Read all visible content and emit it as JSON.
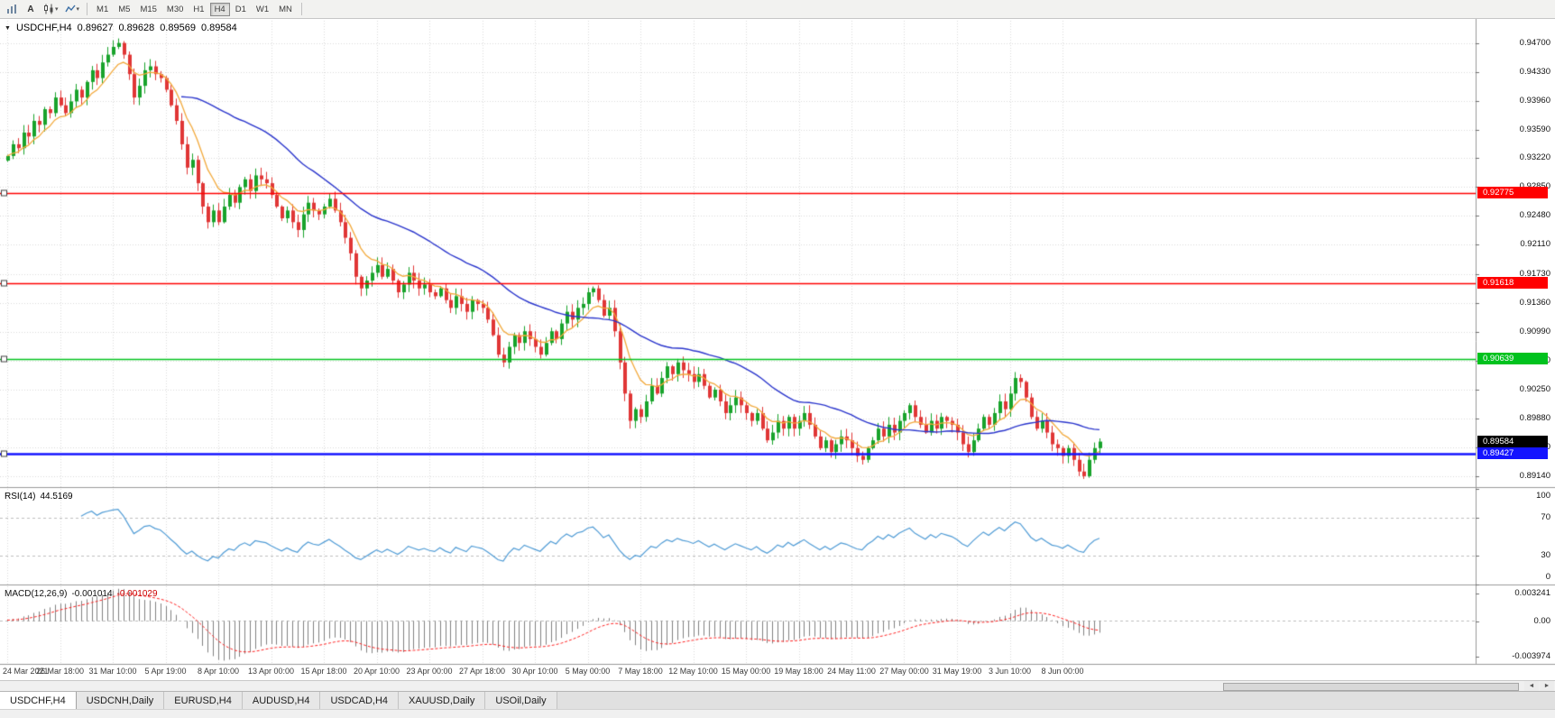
{
  "toolbar": {
    "icons": [
      {
        "name": "bar-chart"
      },
      {
        "name": "cursor-text",
        "glyph": "A"
      },
      {
        "name": "candlestick-chart"
      },
      {
        "name": "line-chart-dropdown"
      }
    ],
    "dropdown_caret": "▾",
    "timeframes": [
      "M1",
      "M5",
      "M15",
      "M30",
      "H1",
      "H4",
      "D1",
      "W1",
      "MN"
    ],
    "active_timeframe": "H4"
  },
  "chart_header": {
    "marker": "▼",
    "symbol": "USDCHF,H4",
    "open": "0.89627",
    "high": "0.89628",
    "low": "0.89569",
    "close": "0.89584"
  },
  "chart_data": {
    "type": "candlestick",
    "symbol": "USDCHF",
    "timeframe": "H4",
    "colors": {
      "up": "#18a32b",
      "down": "#e03636",
      "ma_fast": "#f2a93b",
      "ma_slow": "#2a35cc",
      "rsi": "#4f9bd5",
      "macd_hist": "#808080",
      "macd_signal": "#ff2020",
      "grid": "#d9d9d9"
    },
    "price_axis": {
      "labels": [
        "0.94700",
        "0.94330",
        "0.93960",
        "0.93590",
        "0.93220",
        "0.92850",
        "0.92480",
        "0.92110",
        "0.91730",
        "0.91360",
        "0.90990",
        "0.90620",
        "0.90250",
        "0.89880",
        "0.89510",
        "0.89140"
      ],
      "view_max": 0.9502,
      "view_min": 0.89
    },
    "x_axis": {
      "labels": [
        "24 Mar 2021",
        "26 Mar 18:00",
        "31 Mar 10:00",
        "5 Apr 19:00",
        "8 Apr 10:00",
        "13 Apr 00:00",
        "15 Apr 18:00",
        "20 Apr 10:00",
        "23 Apr 00:00",
        "27 Apr 18:00",
        "30 Apr 10:00",
        "5 May 00:00",
        "7 May 18:00",
        "12 May 10:00",
        "15 May 00:00",
        "19 May 18:00",
        "24 May 11:00",
        "27 May 00:00",
        "31 May 19:00",
        "3 Jun 10:00",
        "8 Jun 00:00"
      ]
    },
    "closes": [
      0.9325,
      0.934,
      0.9335,
      0.9355,
      0.935,
      0.937,
      0.9365,
      0.9385,
      0.938,
      0.94,
      0.939,
      0.938,
      0.9395,
      0.941,
      0.94,
      0.942,
      0.9435,
      0.9425,
      0.9445,
      0.9455,
      0.9465,
      0.947,
      0.9455,
      0.943,
      0.94,
      0.9415,
      0.9435,
      0.944,
      0.943,
      0.9425,
      0.941,
      0.939,
      0.937,
      0.934,
      0.931,
      0.932,
      0.929,
      0.926,
      0.924,
      0.9255,
      0.924,
      0.926,
      0.9275,
      0.9265,
      0.9285,
      0.9295,
      0.928,
      0.93,
      0.9295,
      0.929,
      0.9275,
      0.926,
      0.9245,
      0.9255,
      0.924,
      0.923,
      0.925,
      0.9265,
      0.9255,
      0.925,
      0.926,
      0.927,
      0.9255,
      0.924,
      0.922,
      0.92,
      0.917,
      0.9155,
      0.9165,
      0.9175,
      0.9185,
      0.917,
      0.918,
      0.9165,
      0.915,
      0.916,
      0.9175,
      0.9165,
      0.9155,
      0.916,
      0.915,
      0.9145,
      0.9155,
      0.914,
      0.913,
      0.9145,
      0.9135,
      0.9125,
      0.914,
      0.9135,
      0.913,
      0.9115,
      0.9095,
      0.907,
      0.906,
      0.908,
      0.9095,
      0.9085,
      0.91,
      0.909,
      0.908,
      0.907,
      0.9085,
      0.91,
      0.909,
      0.911,
      0.9125,
      0.9115,
      0.913,
      0.9135,
      0.915,
      0.9155,
      0.914,
      0.912,
      0.913,
      0.91,
      0.906,
      0.902,
      0.8985,
      0.9,
      0.899,
      0.901,
      0.903,
      0.902,
      0.904,
      0.9055,
      0.9045,
      0.906,
      0.905,
      0.9045,
      0.9035,
      0.9045,
      0.903,
      0.9015,
      0.9025,
      0.901,
      0.8995,
      0.9005,
      0.9015,
      0.9005,
      0.8995,
      0.8985,
      0.8995,
      0.8975,
      0.896,
      0.897,
      0.8985,
      0.8975,
      0.899,
      0.8975,
      0.8985,
      0.8995,
      0.898,
      0.8965,
      0.895,
      0.896,
      0.8945,
      0.8955,
      0.8965,
      0.896,
      0.895,
      0.894,
      0.8935,
      0.895,
      0.896,
      0.8975,
      0.8965,
      0.898,
      0.897,
      0.8985,
      0.8995,
      0.9005,
      0.899,
      0.898,
      0.897,
      0.8985,
      0.8975,
      0.899,
      0.8985,
      0.898,
      0.897,
      0.8955,
      0.8945,
      0.896,
      0.8975,
      0.899,
      0.898,
      0.8995,
      0.901,
      0.9,
      0.902,
      0.904,
      0.9035,
      0.9015,
      0.899,
      0.8975,
      0.8985,
      0.897,
      0.8955,
      0.895,
      0.894,
      0.895,
      0.8935,
      0.892,
      0.8914,
      0.8935,
      0.895,
      0.89584
    ],
    "hlines": [
      {
        "price": 0.92775,
        "label": "0.92775",
        "color": "#ff0000",
        "width": 1.5
      },
      {
        "price": 0.91618,
        "label": "0.91618",
        "color": "#ff0000",
        "width": 1.5
      },
      {
        "price": 0.90639,
        "label": "0.90639",
        "color": "#00c21e",
        "width": 1.5
      },
      {
        "price": 0.89427,
        "label": "0.89427",
        "color": "#1414ff",
        "width": 2.5
      }
    ],
    "current_price": {
      "value": 0.89584,
      "label": "0.89584",
      "tag_color": "#000000"
    },
    "moving_averages": [
      {
        "kind": "ema",
        "period": 8,
        "color_key": "ma_fast"
      },
      {
        "kind": "sma",
        "period": 34,
        "color_key": "ma_slow"
      }
    ],
    "indicators": {
      "rsi": {
        "name": "RSI(14)",
        "value_text": "44.5169",
        "period": 14,
        "value": 44.5169,
        "levels": [
          70,
          30
        ],
        "axis_labels": [
          "100",
          "70",
          "30",
          "0"
        ]
      },
      "macd": {
        "name": "MACD(12,26,9)",
        "value_text": "-0.001014",
        "signal_text": "-0.001029",
        "params": [
          12,
          26,
          9
        ],
        "value": -0.001014,
        "signal": -0.001029,
        "axis_top": "0.003241",
        "axis_zero": "0.00",
        "axis_bottom": "-0.003974"
      }
    }
  },
  "scrollbar": {
    "left_arrow": "◄",
    "right_arrow": "►"
  },
  "tabs": {
    "items": [
      "USDCHF,H4",
      "USDCNH,Daily",
      "EURUSD,H4",
      "AUDUSD,H4",
      "USDCAD,H4",
      "XAUUSD,Daily",
      "USOil,Daily"
    ],
    "active": "USDCHF,H4"
  }
}
